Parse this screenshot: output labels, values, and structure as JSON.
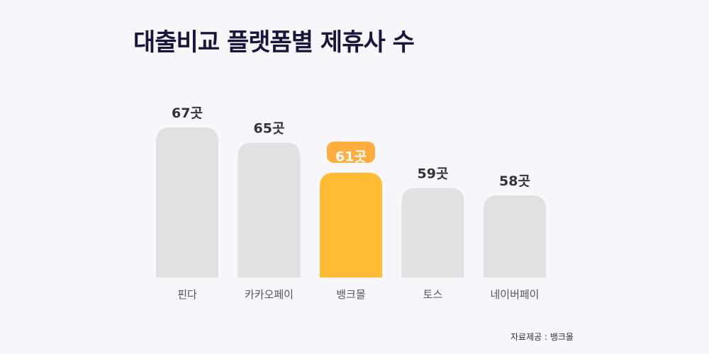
{
  "title": "대출비교 플랫폼별 제휴사 수",
  "source": "자료제공 : 뱅크몰",
  "colors": {
    "bar": "#e1e1e1",
    "highlight": "#ffbb33",
    "highlight_label_bg": "#ffad3d",
    "highlight_label_text": "#ffffff",
    "value_text": "#333333",
    "category_text": "#555555"
  },
  "chart_data": {
    "type": "bar",
    "title": "대출비교 플랫폼별 제휴사 수",
    "categories": [
      "핀다",
      "카카오페이",
      "뱅크몰",
      "토스",
      "네이버페이"
    ],
    "values": [
      67,
      65,
      61,
      59,
      58
    ],
    "value_labels": [
      "67곳",
      "65곳",
      "61곳",
      "59곳",
      "58곳"
    ],
    "highlight_index": 2,
    "xlabel": "",
    "ylabel": ""
  }
}
